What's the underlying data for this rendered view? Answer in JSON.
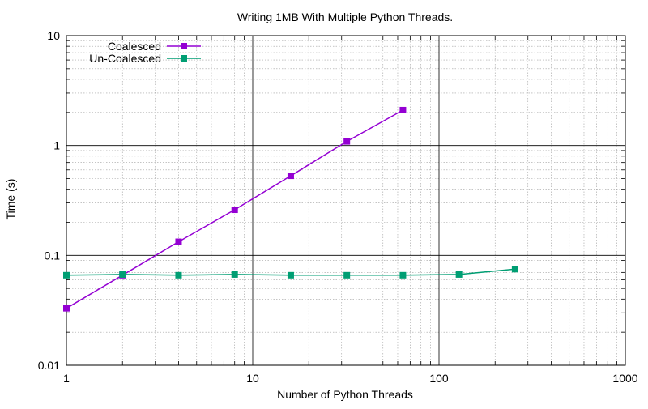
{
  "chart_data": {
    "type": "line",
    "title": "Writing 1MB With Multiple Python Threads.",
    "xlabel": "Number of Python Threads",
    "ylabel": "Time (s)",
    "xscale": "log",
    "yscale": "log",
    "xlim": [
      1,
      1000
    ],
    "ylim": [
      0.01,
      10
    ],
    "grid": true,
    "legend_position": "top-left",
    "x_ticks": [
      {
        "value": 1,
        "label": "1"
      },
      {
        "value": 10,
        "label": "10"
      },
      {
        "value": 100,
        "label": "100"
      },
      {
        "value": 1000,
        "label": "1000"
      }
    ],
    "y_ticks": [
      {
        "value": 0.01,
        "label": "0.01"
      },
      {
        "value": 0.1,
        "label": "0.1"
      },
      {
        "value": 1,
        "label": "1"
      },
      {
        "value": 10,
        "label": "10"
      }
    ],
    "series": [
      {
        "name": "Coalesced",
        "color": "#9400d3",
        "marker": "square",
        "x": [
          1,
          2,
          4,
          8,
          16,
          32,
          64
        ],
        "y": [
          0.033,
          0.066,
          0.133,
          0.26,
          0.53,
          1.09,
          2.1
        ]
      },
      {
        "name": "Un-Coalesced",
        "color": "#009e73",
        "marker": "square",
        "x": [
          1,
          2,
          4,
          8,
          16,
          32,
          64,
          128,
          256
        ],
        "y": [
          0.066,
          0.067,
          0.066,
          0.067,
          0.066,
          0.066,
          0.066,
          0.067,
          0.075
        ]
      }
    ]
  }
}
